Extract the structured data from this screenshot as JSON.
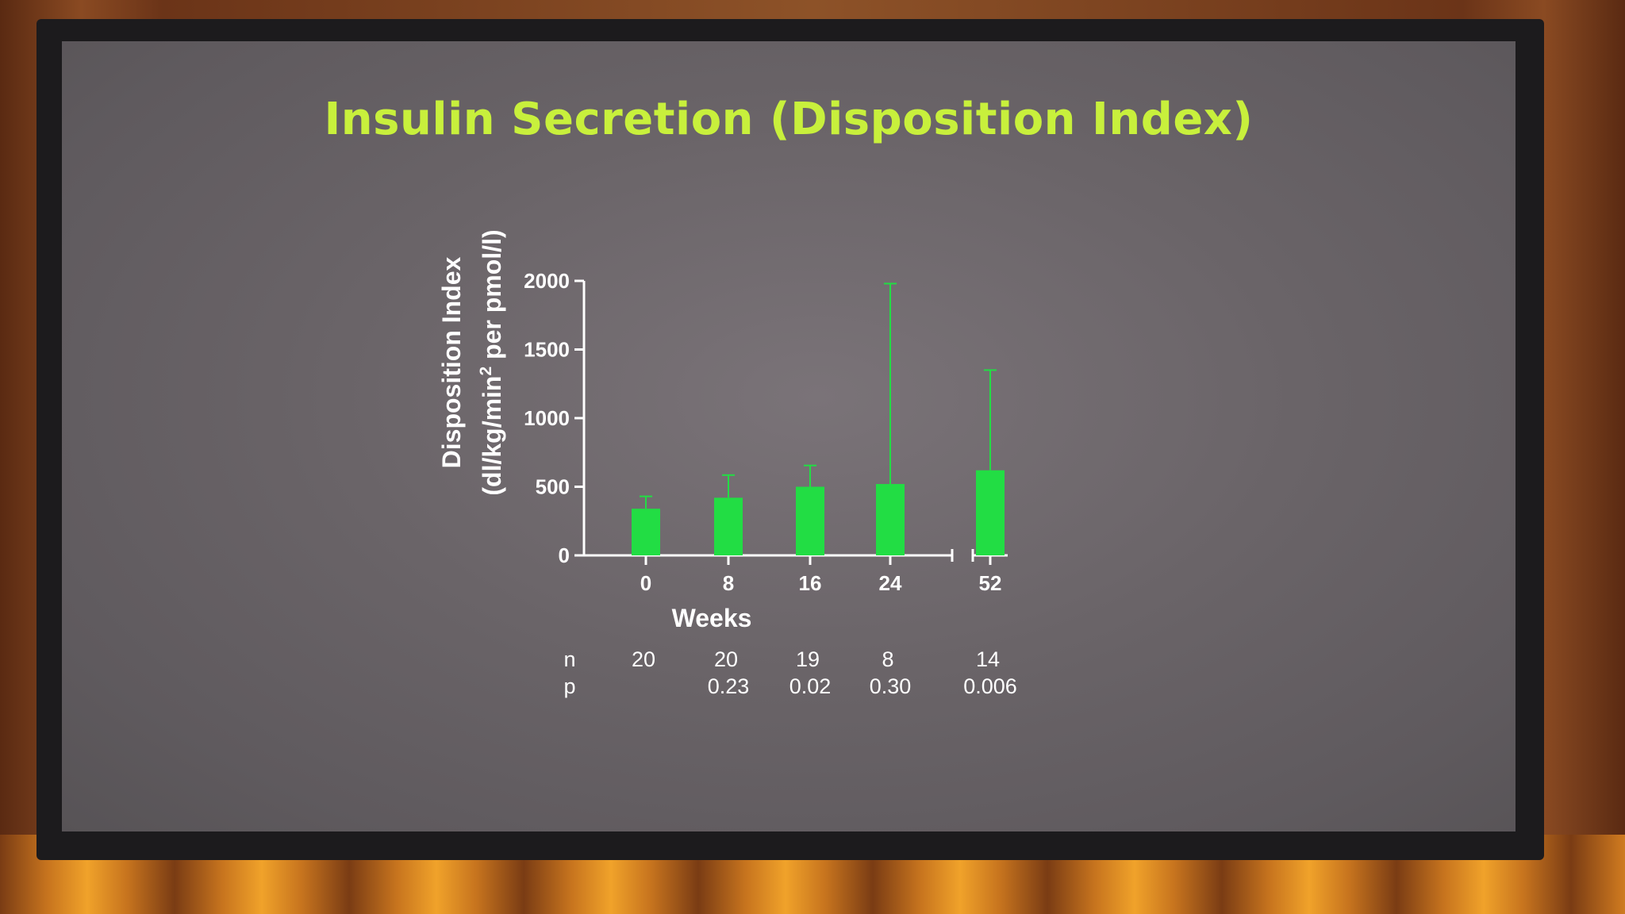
{
  "slide": {
    "title": "Insulin Secretion (Disposition Index)"
  },
  "colors": {
    "bar": "#22dd44",
    "title": "#c8f03c",
    "axis": "#ffffff"
  },
  "chart_data": {
    "type": "bar",
    "categories": [
      "0",
      "8",
      "16",
      "24",
      "52"
    ],
    "values": [
      340,
      420,
      500,
      520,
      620
    ],
    "error_upper": [
      430,
      585,
      655,
      1980,
      1350
    ],
    "xlabel": "Weeks",
    "ylabel_line1": "Disposition Index",
    "ylabel_line2_pre": "(dl/kg/min",
    "ylabel_sup": "2",
    "ylabel_line2_post": " per pmol/l)",
    "ylim": [
      0,
      2000
    ],
    "yticks": [
      "0",
      "500",
      "1000",
      "1500",
      "2000"
    ],
    "axis_break": "between 24 and 52",
    "grid": false,
    "stats": {
      "n_label": "n",
      "p_label": "p",
      "n": [
        "20",
        "20",
        "19",
        "8",
        "14"
      ],
      "p": [
        "",
        "0.23",
        "0.02",
        "0.30",
        "0.006"
      ]
    }
  }
}
